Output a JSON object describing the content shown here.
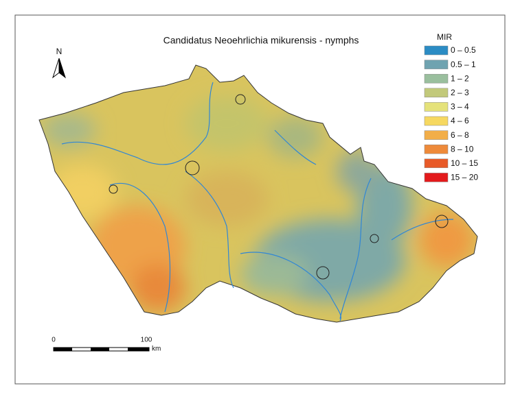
{
  "title": "Candidatus Neoehrlichia mikurensis - nymphs",
  "north_arrow": {
    "label": "N"
  },
  "legend": {
    "title": "MIR",
    "items": [
      {
        "label": "0 – 0.5",
        "color": "#2b8cc4"
      },
      {
        "label": "0.5 – 1",
        "color": "#6fa3b0"
      },
      {
        "label": "1 – 2",
        "color": "#9abf9e"
      },
      {
        "label": "2 – 3",
        "color": "#c2c97a"
      },
      {
        "label": "3 – 4",
        "color": "#e5e27a"
      },
      {
        "label": "4 – 6",
        "color": "#f6d860"
      },
      {
        "label": "6 – 8",
        "color": "#f2ae48"
      },
      {
        "label": "8 – 10",
        "color": "#ee8a3a"
      },
      {
        "label": "10 – 15",
        "color": "#e85a28"
      },
      {
        "label": "15 – 20",
        "color": "#e31a1c"
      }
    ]
  },
  "scale_bar": {
    "ticks": [
      "0",
      "100"
    ],
    "unit": "km"
  }
}
